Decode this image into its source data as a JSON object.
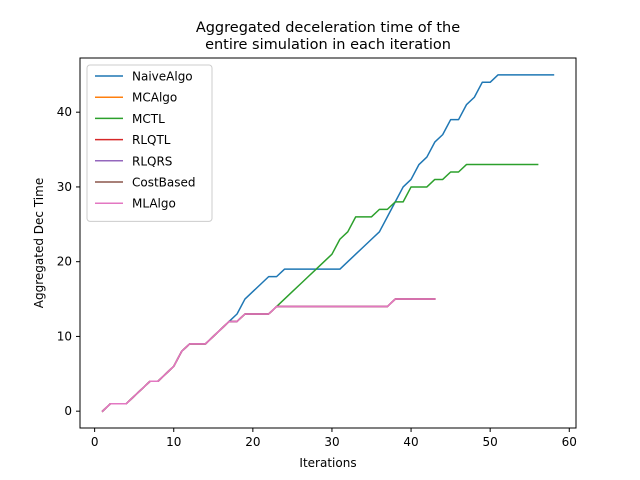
{
  "chart_data": {
    "type": "line",
    "title": "Aggregated deceleration time of the\nentire simulation in each iteration",
    "xlabel": "Iterations",
    "ylabel": "Aggregated Dec Time",
    "xlim": [
      -1.85,
      60.85
    ],
    "ylim": [
      -2.25,
      47.25
    ],
    "xticks": [
      0,
      10,
      20,
      30,
      40,
      50,
      60
    ],
    "yticks": [
      0,
      10,
      20,
      30,
      40
    ],
    "grid": false,
    "legend_position": "top-left",
    "series": [
      {
        "name": "NaiveAlgo",
        "color": "#1f77b4",
        "x": [
          1,
          2,
          3,
          4,
          5,
          6,
          7,
          8,
          9,
          10,
          11,
          12,
          13,
          14,
          15,
          16,
          17,
          18,
          19,
          20,
          21,
          22,
          23,
          24,
          25,
          26,
          27,
          28,
          29,
          30,
          31,
          32,
          33,
          34,
          35,
          36,
          37,
          38,
          39,
          40,
          41,
          42,
          43,
          44,
          45,
          46,
          47,
          48,
          49,
          50,
          51,
          52,
          53,
          54,
          55,
          56,
          57,
          58
        ],
        "y": [
          0,
          1,
          1,
          1,
          2,
          3,
          4,
          4,
          5,
          6,
          8,
          9,
          9,
          9,
          10,
          11,
          12,
          13,
          15,
          16,
          17,
          18,
          18,
          19,
          19,
          19,
          19,
          19,
          19,
          19,
          19,
          20,
          21,
          22,
          23,
          24,
          26,
          28,
          30,
          31,
          33,
          34,
          36,
          37,
          39,
          39,
          41,
          42,
          44,
          44,
          45,
          45,
          45,
          45,
          45,
          45,
          45,
          45
        ]
      },
      {
        "name": "MCAlgo",
        "color": "#ff7f0e",
        "x": [
          1,
          2,
          3,
          4,
          5,
          6,
          7,
          8,
          9,
          10,
          11,
          12,
          13,
          14,
          15,
          16,
          17,
          18,
          19,
          20,
          21,
          22,
          23,
          24,
          25,
          26,
          27,
          28,
          29,
          30,
          31,
          32,
          33,
          34,
          35,
          36,
          37,
          38,
          39,
          40,
          41,
          42,
          43
        ],
        "y": [
          0,
          1,
          1,
          1,
          2,
          3,
          4,
          4,
          5,
          6,
          8,
          9,
          9,
          9,
          10,
          11,
          12,
          12,
          13,
          13,
          13,
          13,
          14,
          14,
          14,
          14,
          14,
          14,
          14,
          14,
          14,
          14,
          14,
          14,
          14,
          14,
          14,
          15,
          15,
          15,
          15,
          15,
          15
        ]
      },
      {
        "name": "MCTL",
        "color": "#2ca02c",
        "x": [
          1,
          2,
          3,
          4,
          5,
          6,
          7,
          8,
          9,
          10,
          11,
          12,
          13,
          14,
          15,
          16,
          17,
          18,
          19,
          20,
          21,
          22,
          23,
          24,
          25,
          26,
          27,
          28,
          29,
          30,
          31,
          32,
          33,
          34,
          35,
          36,
          37,
          38,
          39,
          40,
          41,
          42,
          43,
          44,
          45,
          46,
          47,
          48,
          49,
          50,
          51,
          52,
          53,
          54,
          55,
          56
        ],
        "y": [
          0,
          1,
          1,
          1,
          2,
          3,
          4,
          4,
          5,
          6,
          8,
          9,
          9,
          9,
          10,
          11,
          12,
          12,
          13,
          13,
          13,
          13,
          14,
          15,
          16,
          17,
          18,
          19,
          20,
          21,
          23,
          24,
          26,
          26,
          26,
          27,
          27,
          28,
          28,
          30,
          30,
          30,
          31,
          31,
          32,
          32,
          33,
          33,
          33,
          33,
          33,
          33,
          33,
          33,
          33,
          33
        ]
      },
      {
        "name": "RLQTL",
        "color": "#d62728",
        "x": [
          1,
          2,
          3,
          4,
          5,
          6,
          7,
          8,
          9,
          10,
          11,
          12,
          13,
          14,
          15,
          16,
          17,
          18,
          19,
          20,
          21,
          22,
          23,
          24,
          25,
          26,
          27,
          28,
          29,
          30,
          31,
          32,
          33,
          34,
          35,
          36,
          37,
          38,
          39,
          40,
          41,
          42,
          43
        ],
        "y": [
          0,
          1,
          1,
          1,
          2,
          3,
          4,
          4,
          5,
          6,
          8,
          9,
          9,
          9,
          10,
          11,
          12,
          12,
          13,
          13,
          13,
          13,
          14,
          14,
          14,
          14,
          14,
          14,
          14,
          14,
          14,
          14,
          14,
          14,
          14,
          14,
          14,
          15,
          15,
          15,
          15,
          15,
          15
        ]
      },
      {
        "name": "RLQRS",
        "color": "#9467bd",
        "x": [
          1,
          2,
          3,
          4,
          5,
          6,
          7,
          8,
          9,
          10,
          11,
          12,
          13,
          14,
          15,
          16,
          17,
          18,
          19,
          20,
          21,
          22,
          23,
          24,
          25,
          26,
          27,
          28,
          29,
          30,
          31,
          32,
          33,
          34,
          35,
          36,
          37,
          38,
          39,
          40,
          41,
          42,
          43
        ],
        "y": [
          0,
          1,
          1,
          1,
          2,
          3,
          4,
          4,
          5,
          6,
          8,
          9,
          9,
          9,
          10,
          11,
          12,
          12,
          13,
          13,
          13,
          13,
          14,
          14,
          14,
          14,
          14,
          14,
          14,
          14,
          14,
          14,
          14,
          14,
          14,
          14,
          14,
          15,
          15,
          15,
          15,
          15,
          15
        ]
      },
      {
        "name": "CostBased",
        "color": "#8c564b",
        "x": [
          1,
          2,
          3,
          4,
          5,
          6,
          7,
          8,
          9,
          10,
          11,
          12,
          13,
          14,
          15,
          16,
          17,
          18,
          19,
          20,
          21,
          22,
          23,
          24,
          25,
          26,
          27,
          28,
          29,
          30,
          31,
          32,
          33,
          34,
          35,
          36,
          37,
          38,
          39,
          40,
          41,
          42,
          43
        ],
        "y": [
          0,
          1,
          1,
          1,
          2,
          3,
          4,
          4,
          5,
          6,
          8,
          9,
          9,
          9,
          10,
          11,
          12,
          12,
          13,
          13,
          13,
          13,
          14,
          14,
          14,
          14,
          14,
          14,
          14,
          14,
          14,
          14,
          14,
          14,
          14,
          14,
          14,
          15,
          15,
          15,
          15,
          15,
          15
        ]
      },
      {
        "name": "MLAlgo",
        "color": "#e377c2",
        "x": [
          1,
          2,
          3,
          4,
          5,
          6,
          7,
          8,
          9,
          10,
          11,
          12,
          13,
          14,
          15,
          16,
          17,
          18,
          19,
          20,
          21,
          22,
          23,
          24,
          25,
          26,
          27,
          28,
          29,
          30,
          31,
          32,
          33,
          34,
          35,
          36,
          37,
          38,
          39,
          40,
          41,
          42,
          43
        ],
        "y": [
          0,
          1,
          1,
          1,
          2,
          3,
          4,
          4,
          5,
          6,
          8,
          9,
          9,
          9,
          10,
          11,
          12,
          12,
          13,
          13,
          13,
          13,
          14,
          14,
          14,
          14,
          14,
          14,
          14,
          14,
          14,
          14,
          14,
          14,
          14,
          14,
          14,
          15,
          15,
          15,
          15,
          15,
          15
        ]
      }
    ]
  }
}
